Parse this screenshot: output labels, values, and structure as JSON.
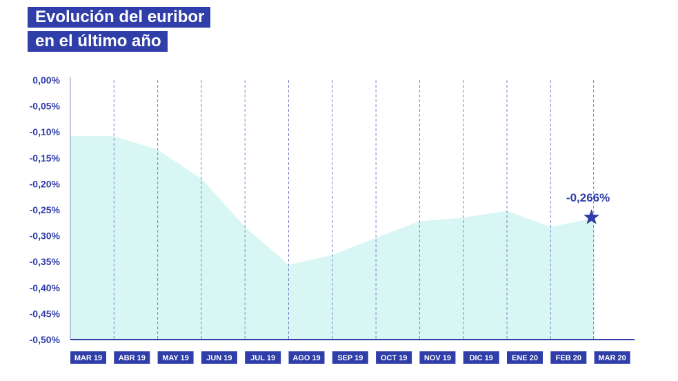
{
  "title": {
    "line1": "Evolución del euribor",
    "line2": "en el último año"
  },
  "colors": {
    "accent": "#2f3ea8",
    "area": "#d8f6f4",
    "grid": "#7a84c9"
  },
  "chart_data": {
    "type": "area",
    "title": "Evolución del euribor en el último año",
    "xlabel": "",
    "ylabel": "",
    "ylim": [
      -0.5,
      0.0
    ],
    "y_ticks": [
      "0,00%",
      "-0,05%",
      "-0,10%",
      "-0,15%",
      "-0,20%",
      "-0,25%",
      "-0,30%",
      "-0,35%",
      "-0,40%",
      "-0,45%",
      "-0,50%"
    ],
    "y_tick_values": [
      0.0,
      -0.05,
      -0.1,
      -0.15,
      -0.2,
      -0.25,
      -0.3,
      -0.35,
      -0.4,
      -0.45,
      -0.5
    ],
    "categories": [
      "MAR 19",
      "ABR 19",
      "MAY 19",
      "JUN 19",
      "JUL 19",
      "AGO 19",
      "SEP 19",
      "OCT 19",
      "NOV 19",
      "DIC 19",
      "ENE 20",
      "FEB 20",
      "MAR 20"
    ],
    "values": [
      -0.108,
      -0.108,
      -0.134,
      -0.19,
      -0.283,
      -0.356,
      -0.337,
      -0.304,
      -0.272,
      -0.265,
      -0.252,
      -0.283,
      -0.266
    ],
    "grid": "vertical-dashed",
    "annotation": {
      "index": 12,
      "label": "-0,266%",
      "marker": "star-icon"
    }
  }
}
